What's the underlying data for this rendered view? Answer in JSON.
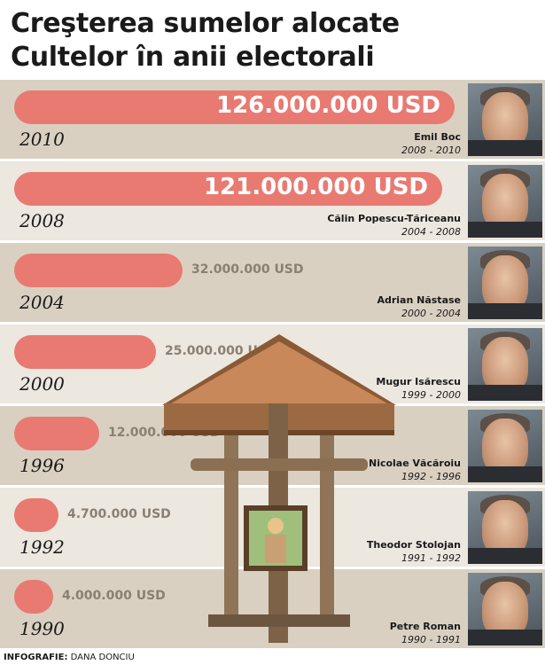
{
  "title_lines": [
    "Creşterea sumelor alocate",
    "Cultelor în anii electorali"
  ],
  "footer": {
    "label": "INFOGRAFIE:",
    "author": "DANA DONCIU"
  },
  "colors": {
    "bar": "#e87a72",
    "row_dark": "#d9d0c1",
    "row_light": "#ece7df"
  },
  "chart_data": {
    "type": "bar",
    "orientation": "horizontal",
    "title": "Creşterea sumelor alocate Cultelor în anii electorali",
    "unit": "USD",
    "categories": [
      "2010",
      "2008",
      "2004",
      "2000",
      "1996",
      "1992",
      "1990"
    ],
    "values": [
      126000000,
      121000000,
      32000000,
      25000000,
      12000000,
      4700000,
      4000000
    ],
    "value_labels": [
      "126.000.000 USD",
      "121.000.000 USD",
      "32.000.000 USD",
      "25.000.000 USD",
      "12.000.000 USD",
      "4.700.000 USD",
      "4.000.000 USD"
    ],
    "prime_ministers": [
      {
        "name": "Emil Boc",
        "term": "2008 - 2010"
      },
      {
        "name": "Călin Popescu-Tăriceanu",
        "term": "2004 - 2008"
      },
      {
        "name": "Adrian Năstase",
        "term": "2000 - 2004"
      },
      {
        "name": "Mugur Isărescu",
        "term": "1999 - 2000"
      },
      {
        "name": "Nicolae Văcăroiu",
        "term": "1992 - 1996"
      },
      {
        "name": "Theodor Stolojan",
        "term": "1991 - 1992"
      },
      {
        "name": "Petre Roman",
        "term": "1990 - 1991"
      }
    ]
  }
}
